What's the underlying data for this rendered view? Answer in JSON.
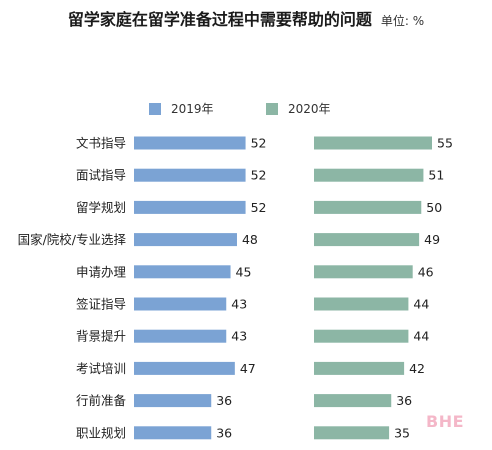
{
  "colors": {
    "series_2019": "#7ba3d4",
    "series_2020": "#8cb6a5",
    "watermark": "#f4b7c8"
  },
  "watermark": "BHE",
  "chart_data": {
    "type": "bar",
    "orientation": "horizontal",
    "title": "留学家庭在留学准备过程中需要帮助的问题",
    "unit_label": "单位: %",
    "categories": [
      "文书指导",
      "面试指导",
      "留学规划",
      "国家/院校/专业选择",
      "申请办理",
      "签证指导",
      "背景提升",
      "考试培训",
      "行前准备",
      "职业规划"
    ],
    "series": [
      {
        "name": "2019年",
        "values": [
          52,
          52,
          52,
          48,
          45,
          43,
          43,
          47,
          36,
          36
        ]
      },
      {
        "name": "2020年",
        "values": [
          55,
          51,
          50,
          49,
          46,
          44,
          44,
          42,
          36,
          35
        ]
      }
    ],
    "legend_position": "top",
    "grid": false
  }
}
